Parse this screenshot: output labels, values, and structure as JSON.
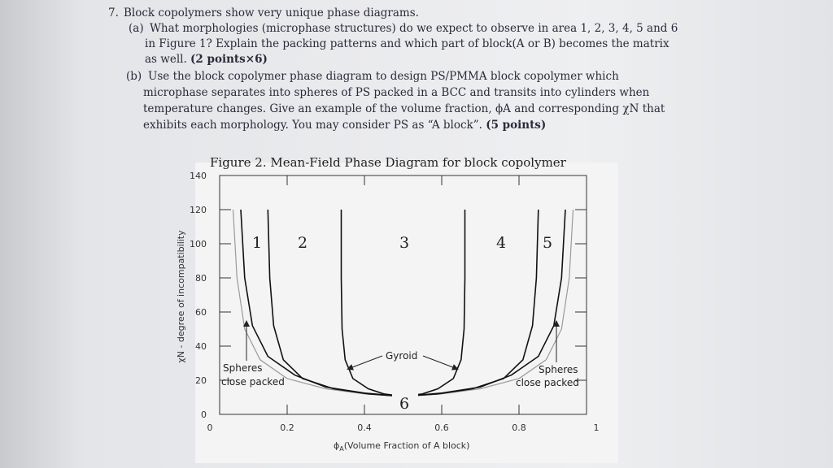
{
  "question": {
    "number": "7.",
    "intro": "Block copolymers show very unique phase diagrams.",
    "parts": [
      {
        "label": "(a)",
        "lines": [
          "What morphologies (microphase structures) do we expect to observe in area 1, 2, 3, 4, 5 and 6",
          "in Figure 1? Explain the packing patterns and which part of block(A or B) becomes the matrix",
          "as well."
        ],
        "points": "(2 points×6)"
      },
      {
        "label": "(b)",
        "lines": [
          "Use the block copolymer phase diagram to design PS/PMMA block copolymer which",
          "microphase separates into spheres of PS packed in a BCC and transits into cylinders when",
          "temperature changes. Give an example of the volume fraction, ϕA and corresponding χN that",
          "exhibits each morphology. You may consider PS as “A block”."
        ],
        "points": "(5 points)"
      }
    ]
  },
  "chart_data": {
    "type": "line",
    "title": "Figure 2. Mean-Field Phase Diagram for block copolymer",
    "ylabel": "χN - degree of incompatibility",
    "xlabel_symbol": "ϕ",
    "xlabel_sub": "A",
    "xlabel_text": "(Volume Fraction of A block)",
    "xlim": [
      0,
      1
    ],
    "ylim": [
      0,
      140
    ],
    "xticks": [
      0,
      0.2,
      0.4,
      0.6,
      0.8,
      1
    ],
    "yticks": [
      0,
      20,
      40,
      60,
      80,
      100,
      120,
      140
    ],
    "series": [
      {
        "color": "#9a9a9a",
        "x": [
          0.06,
          0.07,
          0.09,
          0.13,
          0.2,
          0.3,
          0.4,
          0.5,
          0.6,
          0.7,
          0.8,
          0.87,
          0.91,
          0.93,
          0.94
        ],
        "values": [
          120,
          80,
          50,
          32,
          21,
          15,
          12,
          10.5,
          12,
          15,
          21,
          32,
          50,
          80,
          120
        ]
      },
      {
        "color": "#111111",
        "x": [
          0.08,
          0.09,
          0.11,
          0.15,
          0.22,
          0.3,
          0.4,
          0.5,
          0.6,
          0.7,
          0.78,
          0.85,
          0.89,
          0.91,
          0.92
        ],
        "values": [
          120,
          80,
          52,
          34,
          23,
          16,
          12.5,
          10.5,
          12.5,
          16,
          23,
          34,
          52,
          80,
          120
        ]
      },
      {
        "color": "#111111",
        "x": [
          0.15,
          0.155,
          0.165,
          0.19,
          0.24,
          0.32,
          0.41,
          0.5,
          0.59,
          0.68,
          0.76,
          0.81,
          0.835,
          0.845,
          0.85
        ],
        "values": [
          120,
          80,
          52,
          32,
          21,
          15,
          12,
          10.5,
          12,
          15,
          21,
          32,
          52,
          80,
          120
        ]
      },
      {
        "color": "#111111",
        "x": [
          0.34,
          0.34,
          0.342,
          0.35,
          0.37,
          0.41,
          0.45,
          0.5,
          0.55,
          0.59,
          0.63,
          0.65,
          0.658,
          0.66,
          0.66
        ],
        "values": [
          120,
          80,
          50,
          32,
          21,
          15,
          12,
          10.5,
          12,
          15,
          21,
          32,
          50,
          80,
          120
        ]
      }
    ],
    "annotations": [
      "1",
      "2",
      "3",
      "4",
      "5",
      "6",
      "Gyroid",
      "Spheres",
      "close packed",
      "Spheres",
      "close packed"
    ]
  }
}
